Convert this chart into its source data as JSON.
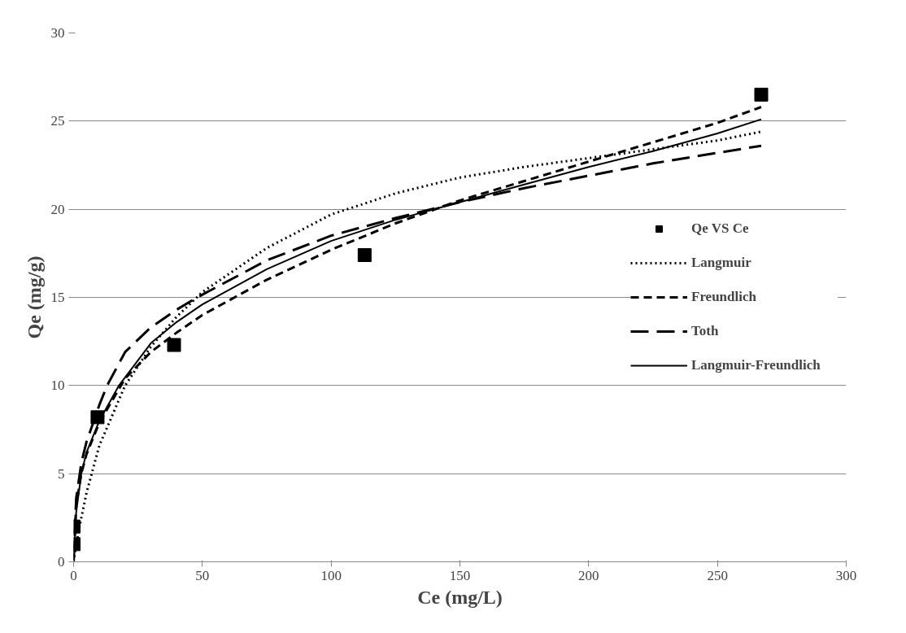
{
  "chart_data": {
    "type": "line",
    "xlabel": "Ce (mg/L)",
    "ylabel": "Qe (mg/g)",
    "xlim": [
      0,
      300
    ],
    "ylim": [
      0,
      30
    ],
    "xticks": [
      0,
      50,
      100,
      150,
      200,
      250,
      300
    ],
    "yticks": [
      0,
      5,
      10,
      15,
      20,
      25,
      30
    ],
    "grid": "y",
    "legend": "right",
    "series": [
      {
        "name": "Qe VS Ce",
        "type": "scatter",
        "marker": "square",
        "color": "#000000",
        "x": [
          0,
          0,
          9.3,
          39,
          113,
          267
        ],
        "values": [
          1.0,
          2.0,
          8.2,
          12.3,
          17.4,
          26.5
        ]
      },
      {
        "name": "Langmuir",
        "line_style": "dotted",
        "color": "#000000",
        "x": [
          0,
          1,
          3,
          5,
          10,
          20,
          30,
          40,
          50,
          75,
          100,
          125,
          150,
          175,
          200,
          225,
          250,
          267
        ],
        "values": [
          0,
          1.0,
          2.5,
          3.9,
          6.6,
          10.0,
          12.2,
          13.9,
          15.3,
          17.8,
          19.7,
          20.9,
          21.8,
          22.4,
          22.9,
          23.4,
          23.9,
          24.4
        ]
      },
      {
        "name": "Freundlich",
        "line_style": "dashed",
        "color": "#000000",
        "x": [
          0,
          1,
          3,
          5,
          10,
          20,
          30,
          40,
          50,
          75,
          100,
          125,
          150,
          175,
          200,
          225,
          250,
          267
        ],
        "values": [
          0,
          3.2,
          5.0,
          6.1,
          7.9,
          10.4,
          11.9,
          13.0,
          14.0,
          16.0,
          17.7,
          19.2,
          20.5,
          21.6,
          22.7,
          23.8,
          24.9,
          25.8
        ]
      },
      {
        "name": "Toth",
        "line_style": "dashed_long",
        "color": "#000000",
        "x": [
          0,
          1,
          3,
          5,
          10,
          13,
          20,
          30,
          40,
          48,
          75,
          100,
          125,
          150,
          175,
          200,
          225,
          250,
          267
        ],
        "values": [
          0,
          3.6,
          5.6,
          6.8,
          8.9,
          10.0,
          11.9,
          13.3,
          14.3,
          15.0,
          17.1,
          18.5,
          19.5,
          20.4,
          21.2,
          21.9,
          22.6,
          23.2,
          23.6
        ]
      },
      {
        "name": "Langmuir-Freundlich",
        "line_style": "solid",
        "color": "#000000",
        "x": [
          0,
          1,
          3,
          5,
          10,
          17.6,
          30,
          40,
          50,
          75,
          100,
          125,
          150,
          175,
          200,
          225,
          250,
          267
        ],
        "values": [
          0,
          2.8,
          5.0,
          6.2,
          8.0,
          10.0,
          12.4,
          13.6,
          14.6,
          16.6,
          18.2,
          19.4,
          20.4,
          21.4,
          22.4,
          23.3,
          24.3,
          25.1
        ]
      }
    ]
  }
}
